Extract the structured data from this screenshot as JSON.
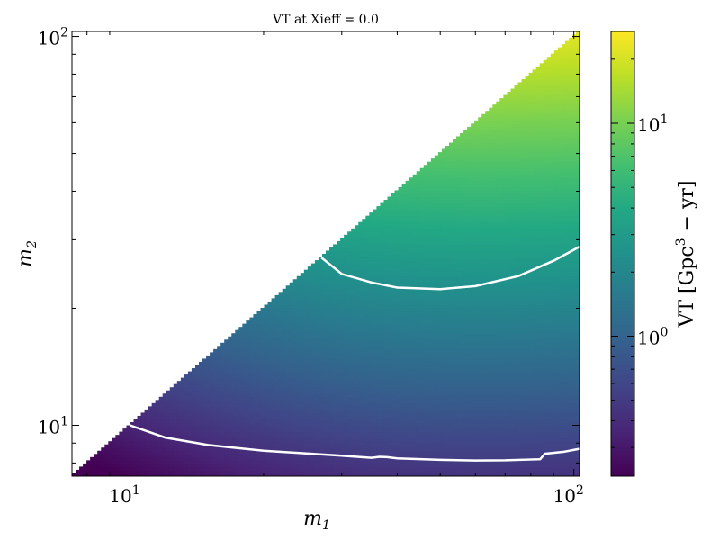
{
  "chart_data": {
    "type": "heatmap",
    "title": "VT at Xieff = 0.0",
    "xlabel": "m",
    "xlabel_sub": "1",
    "ylabel": "m",
    "ylabel_sub": "2",
    "xscale": "log",
    "yscale": "log",
    "xlim": [
      7.4,
      103
    ],
    "ylim": [
      7.4,
      103
    ],
    "x_ticks": [
      {
        "value": 10,
        "base": "10",
        "exp": "1"
      },
      {
        "value": 100,
        "base": "10",
        "exp": "2"
      }
    ],
    "y_ticks": [
      {
        "value": 10,
        "base": "10",
        "exp": "1"
      },
      {
        "value": 100,
        "base": "10",
        "exp": "2"
      }
    ],
    "mask": "only m2 <= m1 is filled",
    "colormap": "viridis",
    "colorscale": "log",
    "colorbar": {
      "label_main": "VT [Gpc",
      "label_exp": "3",
      "label_tail": " − yr]",
      "range": [
        0.22,
        27
      ],
      "ticks": [
        {
          "value": 1,
          "base": "10",
          "exp": "0"
        },
        {
          "value": 10,
          "base": "10",
          "exp": "1"
        }
      ]
    },
    "contours": [
      {
        "level": "low",
        "points": [
          [
            10,
            10
          ],
          [
            12,
            9.3
          ],
          [
            15,
            8.9
          ],
          [
            20,
            8.6
          ],
          [
            30,
            8.35
          ],
          [
            35,
            8.25
          ],
          [
            36.5,
            8.3
          ],
          [
            38,
            8.28
          ],
          [
            40,
            8.22
          ],
          [
            50,
            8.15
          ],
          [
            60,
            8.12
          ],
          [
            70,
            8.13
          ],
          [
            84,
            8.18
          ],
          [
            86,
            8.45
          ],
          [
            95,
            8.55
          ],
          [
            103,
            8.7
          ]
        ]
      },
      {
        "level": "high",
        "points": [
          [
            27,
            27
          ],
          [
            30,
            24.5
          ],
          [
            35,
            23.3
          ],
          [
            40,
            22.6
          ],
          [
            50,
            22.4
          ],
          [
            60,
            22.8
          ],
          [
            75,
            24.2
          ],
          [
            90,
            26.5
          ],
          [
            103,
            28.8
          ]
        ]
      }
    ]
  }
}
